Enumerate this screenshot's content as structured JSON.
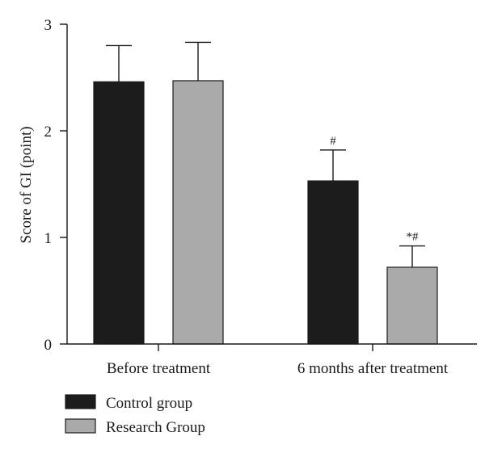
{
  "chart_data": {
    "type": "bar",
    "ylabel": "Score of GI (point)",
    "xlabel": "",
    "ylim": [
      0,
      3
    ],
    "yticks": [
      "0",
      "1",
      "2",
      "3"
    ],
    "categories": [
      "Before treatment",
      "6 months after treatment"
    ],
    "series": [
      {
        "name": "Control group",
        "color": "#1c1c1c",
        "values": [
          2.46,
          1.53
        ],
        "errors": [
          0.34,
          0.29
        ],
        "annotations": [
          "",
          "#"
        ]
      },
      {
        "name": "Research Group",
        "color": "#aaaaaa",
        "values": [
          2.47,
          0.72
        ],
        "errors": [
          0.36,
          0.2
        ],
        "annotations": [
          "",
          "*#"
        ]
      }
    ],
    "legend_position": "bottom-left",
    "grid": false
  }
}
